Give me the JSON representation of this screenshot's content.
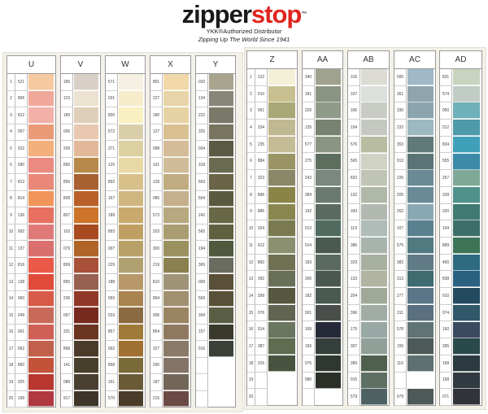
{
  "header": {
    "brand_part1": "zipper",
    "brand_part2": "stop",
    "trademark": "™",
    "line1": "YKK®Authorized Distributor",
    "line2": "Zipping Up The World Since 1941"
  },
  "row_numbers": [
    "1",
    "2",
    "3",
    "4",
    "5",
    "6",
    "7",
    "8",
    "9",
    "10",
    "11",
    "12",
    "13",
    "14",
    "15",
    "16",
    "17",
    "18",
    "19",
    "20"
  ],
  "groups": [
    {
      "label": "U",
      "codes": [
        "521",
        "806",
        "812",
        "057",
        "522",
        "090",
        "813",
        "814",
        "136",
        "002",
        "137",
        "816",
        "138",
        "060",
        "249",
        "061",
        "062",
        "850",
        "025",
        "199"
      ],
      "colors": [
        "#f6c9a0",
        "#f0a89a",
        "#f2b0a8",
        "#eb9a78",
        "#f3b07a",
        "#ea8a80",
        "#e98878",
        "#f2955a",
        "#e77060",
        "#df7a78",
        "#d9706e",
        "#eb5a48",
        "#e04a38",
        "#d85a48",
        "#c86a5a",
        "#d06055",
        "#c0604a",
        "#c4523a",
        "#b83830",
        "#b03840"
      ]
    },
    {
      "label": "V",
      "codes": [
        "186",
        "123",
        "185",
        "005",
        "209",
        "895",
        "856",
        "808",
        "807",
        "102",
        "079",
        "809",
        "855",
        "236",
        "097",
        "331",
        "868",
        "141",
        "088",
        "917"
      ],
      "colors": [
        "#d8d0c6",
        "#ece2d0",
        "#e0cfb8",
        "#e8c8b0",
        "#e2b898",
        "#b88a4a",
        "#a86030",
        "#b86028",
        "#cc7428",
        "#a84a20",
        "#b06428",
        "#a85038",
        "#986050",
        "#903828",
        "#782a20",
        "#6a3420",
        "#4a3a2a",
        "#48402c",
        "#4a4030",
        "#3e3428"
      ]
    },
    {
      "label": "W",
      "codes": [
        "571",
        "031",
        "805",
        "572",
        "371",
        "125",
        "892",
        "167",
        "189",
        "893",
        "007",
        "229",
        "188",
        "093",
        "033",
        "857",
        "092",
        "858",
        "161",
        "570"
      ],
      "colors": [
        "#f6f0e2",
        "#f6eccc",
        "#f8f0c0",
        "#d8ceaa",
        "#dcd0a0",
        "#e8d8a4",
        "#d8c08a",
        "#d0b680",
        "#c8aa6e",
        "#c0a062",
        "#b8a068",
        "#b0a070",
        "#b89868",
        "#a88450",
        "#8a6a40",
        "#a07a38",
        "#a07030",
        "#7a6a38",
        "#6a5a38",
        "#4a3c28"
      ]
    },
    {
      "label": "X",
      "codes": [
        "891",
        "227",
        "180",
        "127",
        "098",
        "101",
        "128",
        "085",
        "573",
        "203",
        "300",
        "219",
        "810",
        "894",
        "006",
        "854",
        "327",
        "290",
        "187",
        "215"
      ],
      "colors": [
        "#f0d8a8",
        "#e8d4a8",
        "#e6d2a4",
        "#d8c090",
        "#d4bc98",
        "#d0bc98",
        "#c0ac80",
        "#c4b08c",
        "#b8a880",
        "#a89c70",
        "#9a9060",
        "#8a8050",
        "#a09478",
        "#a09070",
        "#9a8462",
        "#907860",
        "#8a7a68",
        "#847468",
        "#726658",
        "#6a4a44"
      ]
    },
    {
      "label": "Y",
      "codes": [
        "032",
        "134",
        "222",
        "325",
        "034",
        "318",
        "563",
        "564",
        "242",
        "565",
        "194",
        "365",
        "009",
        "569",
        "394",
        "157",
        "916",
        "",
        "",
        ""
      ],
      "colors": [
        "#a8a48e",
        "#888678",
        "#7a7868",
        "#787460",
        "#5a5a44",
        "#6a6a50",
        "#6c6448",
        "#5a5a40",
        "#686848",
        "#5e6040",
        "#50583e",
        "#6a6c60",
        "#5a5038",
        "#585038",
        "#5a5e44",
        "#3a3a2c",
        "#3a4038",
        "",
        "",
        ""
      ]
    },
    {
      "label": "Z",
      "codes": [
        "122",
        "010",
        "561",
        "334",
        "235",
        "884",
        "323",
        "896",
        "886",
        "324",
        "912",
        "860",
        "392",
        "399",
        "076",
        "014",
        "387",
        "315",
        "",
        ""
      ],
      "colors": [
        "#f4f0d8",
        "#c8c090",
        "#a8a878",
        "#c0b890",
        "#c4bc94",
        "#9a9464",
        "#8a8868",
        "#8a8448",
        "#8a8650",
        "#7a7a50",
        "#8a9070",
        "#707052",
        "#687058",
        "#585840",
        "#606450",
        "#6a7660",
        "#606c50",
        "#485440",
        "",
        ""
      ]
    },
    {
      "label": "AA",
      "codes": [
        "340",
        "181",
        "225",
        "135",
        "577",
        "275",
        "243",
        "384",
        "192",
        "013",
        "914",
        "183",
        "306",
        "182",
        "301",
        "169",
        "156",
        "075",
        "580",
        ""
      ],
      "colors": [
        "#a0a290",
        "#8a9482",
        "#909a88",
        "#788270",
        "#8a9480",
        "#5e6e5e",
        "#7a8880",
        "#6a7a70",
        "#5a6a60",
        "#506a60",
        "#4a5a50",
        "#5a6a60",
        "#4a5850",
        "#4a5a52",
        "#4a4e4a",
        "#262a38",
        "#343e3a",
        "#2e3830",
        "#2a3028",
        ""
      ]
    },
    {
      "label": "AB",
      "codes": [
        "316",
        "337",
        "336",
        "154",
        "576",
        "565",
        "832",
        "132",
        "343",
        "119",
        "386",
        "329",
        "133",
        "204",
        "396",
        "179",
        "307",
        "389",
        "015",
        "579"
      ],
      "colors": [
        "#dcdcd4",
        "#dce0dc",
        "#c8ccc4",
        "#c4c8c0",
        "#b8bca0",
        "#d0d2c4",
        "#c0c4b4",
        "#b0b8a8",
        "#b0b8b0",
        "#b0bcb8",
        "#a8b4ac",
        "#a8b0a0",
        "#b0b4a0",
        "#a0a898",
        "#a0aca4",
        "#98a8a4",
        "#90a098",
        "#50604e",
        "#5e7064",
        "#4e6264"
      ]
    },
    {
      "label": "AC",
      "codes": [
        "095",
        "361",
        "330",
        "232",
        "353",
        "913",
        "226",
        "205",
        "262",
        "107",
        "575",
        "382",
        "313",
        "277",
        "311",
        "578",
        "155",
        "116",
        "",
        "979"
      ],
      "colors": [
        "#a0b8c8",
        "#90a4ac",
        "#8ca4b0",
        "#9cb8c0",
        "#607a78",
        "#5a7476",
        "#6a8a98",
        "#6a8a98",
        "#8aa8b4",
        "#5a8090",
        "#507a80",
        "#607a88",
        "#3e6a70",
        "#5a7688",
        "#5a7080",
        "#607474",
        "#4e5a58",
        "#5e7070",
        "",
        "#4e5a58"
      ]
    },
    {
      "label": "AD",
      "codes": [
        "831",
        "574",
        "050",
        "012",
        "834",
        "555",
        "257",
        "328",
        "320",
        "104",
        "889",
        "400",
        "838",
        "910",
        "074",
        "160",
        "395",
        "168",
        "158",
        "071"
      ],
      "colors": [
        "#c8d4c0",
        "#c0ccc4",
        "#70b0b8",
        "#4e9aa8",
        "#40a0b8",
        "#3a8aa8",
        "#80a898",
        "#50908a",
        "#3e7a72",
        "#3e6e6a",
        "#3e7458",
        "#2e6a80",
        "#2a6080",
        "#244a60",
        "#30586a",
        "#3a4a60",
        "#2a4a4a",
        "#2a3a40",
        "#303a40",
        "#303438"
      ]
    }
  ]
}
